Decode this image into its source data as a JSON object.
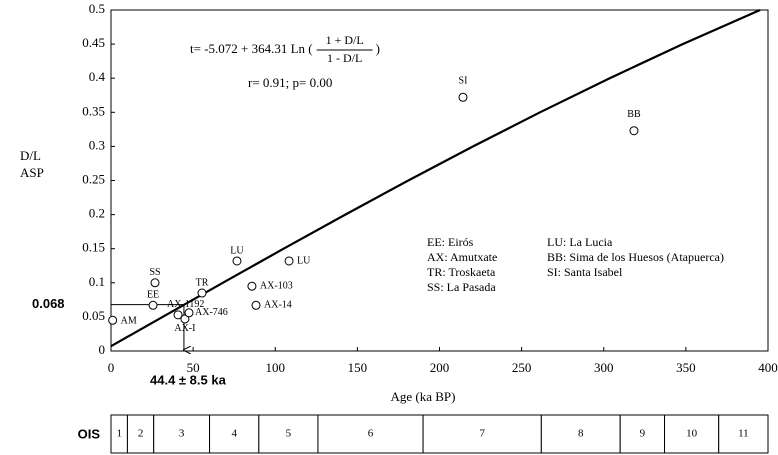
{
  "chart_data": {
    "type": "scatter",
    "xlabel": "Age (ka BP)",
    "ylabel": [
      "D/L",
      "ASP"
    ],
    "xlim": [
      0,
      400
    ],
    "ylim": [
      0,
      0.5
    ],
    "xticks": [
      0,
      50,
      100,
      150,
      200,
      250,
      300,
      350,
      400
    ],
    "yticks": [
      0,
      0.05,
      0.1,
      0.15,
      0.2,
      0.25,
      0.3,
      0.35,
      0.4,
      0.45,
      0.5
    ],
    "x": [
      1,
      25.6,
      26.8,
      40.8,
      45,
      47.5,
      55.4,
      76.7,
      85.8,
      88.3,
      108.4,
      214.3,
      318.4
    ],
    "y": [
      0.045,
      0.067,
      0.1,
      0.053,
      0.047,
      0.056,
      0.085,
      0.132,
      0.095,
      0.067,
      0.132,
      0.372,
      0.323
    ],
    "point_labels": [
      "AM",
      "EE",
      "SS",
      "AX-1192",
      "AX-I",
      "AX-746",
      "TR",
      "LU",
      "AX-103",
      "AX-14",
      "LU",
      "SI",
      "BB"
    ],
    "curve": {
      "x": [
        0,
        31.39,
        68.04,
        105.06,
        142.65,
        181.03,
        220.45,
        261.2,
        303.61,
        348.09,
        395.16
      ],
      "y": [
        0.007,
        0.05,
        0.1,
        0.15,
        0.2,
        0.25,
        0.3,
        0.35,
        0.4,
        0.45,
        0.5
      ]
    },
    "equation": {
      "prefix": "t= -5.072 + 364.31 Ln (",
      "numerator": "1 + D/L",
      "denominator": "1 - D/L",
      "suffix": ")"
    },
    "stats": "r= 0.91; p= 0.00",
    "legend": {
      "left": [
        "EE: Eirós",
        "AX: Amutxate",
        "TR: Troskaeta",
        "SS: La Pasada"
      ],
      "right": [
        "LU: La Lucia",
        "BB: Sima de los Huesos (Atapuerca)",
        "SI: Santa Isabel"
      ]
    },
    "reference": {
      "x": 44.4,
      "y": 0.068,
      "x_label": "44.4 ± 8.5 ka",
      "y_label": "0.068"
    },
    "ois": {
      "label": "OIS",
      "stages": [
        "1",
        "2",
        "3",
        "4",
        "5",
        "6",
        "7",
        "8",
        "9",
        "10",
        "11"
      ],
      "bounds": [
        0,
        10,
        26,
        60,
        90,
        126,
        190,
        262,
        310,
        337,
        370,
        400
      ]
    }
  }
}
